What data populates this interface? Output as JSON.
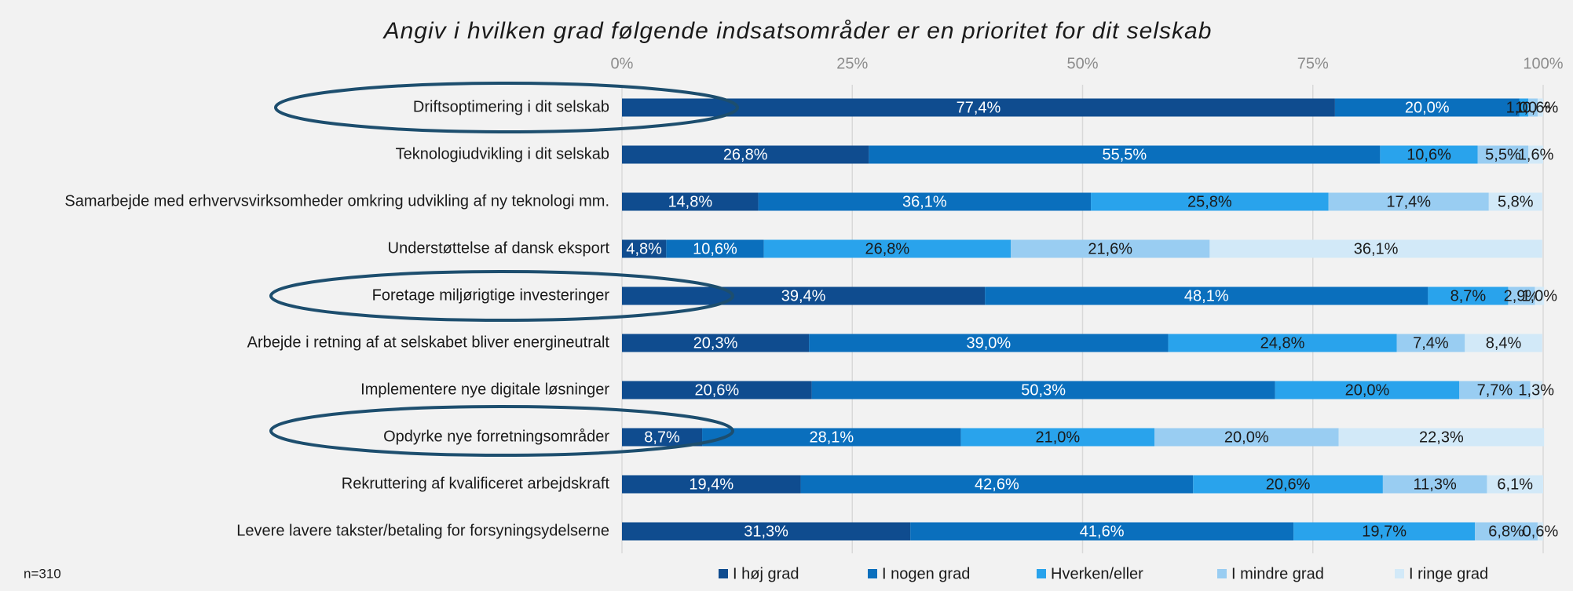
{
  "chart_data": {
    "type": "stacked_barh",
    "title": "Angiv i hvilken grad følgende indsatsområder er en prioritet for dit selskab",
    "annotation": "n=310",
    "categories": [
      "Driftsoptimering i dit selskab",
      "Teknologiudvikling i dit selskab",
      "Samarbejde med erhvervsvirksomheder omkring udvikling af ny teknologi mm.",
      "Understøttelse af dansk eksport",
      "Foretage miljørigtige investeringer",
      "Arbejde i retning af at selskabet bliver energineutralt",
      "Implementere nye digitale løsninger",
      "Opdyrke nye forretningsområder",
      "Rekruttering af kvalificeret arbejdskraft",
      "Levere lavere takster/betaling for forsyningsydelserne"
    ],
    "series": [
      {
        "name": "I høj grad",
        "color": "#0f4c8f",
        "label_color": "#ffffff",
        "values": [
          77.4,
          26.8,
          14.8,
          4.8,
          39.4,
          20.3,
          20.6,
          8.7,
          19.4,
          31.3
        ],
        "value_labels": [
          "77,4%",
          "26,8%",
          "14,8%",
          "4,8%",
          "39,4%",
          "20,3%",
          "20,6%",
          "8,7%",
          "19,4%",
          "31,3%"
        ]
      },
      {
        "name": "I nogen grad",
        "color": "#0a6fbd",
        "label_color": "#ffffff",
        "values": [
          20.0,
          55.5,
          36.1,
          10.6,
          48.1,
          39.0,
          50.3,
          28.1,
          42.6,
          41.6
        ],
        "value_labels": [
          "20,0%",
          "55,5%",
          "36,1%",
          "10,6%",
          "48,1%",
          "39,0%",
          "50,3%",
          "28,1%",
          "42,6%",
          "41,6%"
        ]
      },
      {
        "name": "Hverken/eller",
        "color": "#29a3ec",
        "label_color": "#1a1a1a",
        "values": [
          1.0,
          10.6,
          25.8,
          26.8,
          8.7,
          24.8,
          20.0,
          21.0,
          20.6,
          19.7
        ],
        "value_labels": [
          "1,0%",
          "10,6%",
          "25,8%",
          "26,8%",
          "8,7%",
          "24,8%",
          "20,0%",
          "21,0%",
          "20,6%",
          "19,7%"
        ]
      },
      {
        "name": "I mindre grad",
        "color": "#99cdf2",
        "label_color": "#1a1a1a",
        "values": [
          1.0,
          5.5,
          17.4,
          21.6,
          2.9,
          7.4,
          7.7,
          20.0,
          11.3,
          6.8
        ],
        "value_labels": [
          "1,0%",
          "5,5%",
          "17,4%",
          "21,6%",
          "2,9%",
          "7,4%",
          "7,7%",
          "20,0%",
          "11,3%",
          "6,8%"
        ]
      },
      {
        "name": "I ringe grad",
        "color": "#d2e9f8",
        "label_color": "#1a1a1a",
        "values": [
          0.6,
          1.6,
          5.8,
          36.1,
          1.0,
          8.4,
          1.3,
          22.3,
          6.1,
          0.6
        ],
        "value_labels": [
          "0,6%",
          "1,6%",
          "5,8%",
          "36,1%",
          "1,0%",
          "8,4%",
          "1,3%",
          "22,3%",
          "6,1%",
          "0,6%"
        ]
      }
    ],
    "xlim": [
      0,
      100
    ],
    "xticks": [
      {
        "value": 0,
        "label": "0%"
      },
      {
        "value": 25,
        "label": "25%"
      },
      {
        "value": 50,
        "label": "50%"
      },
      {
        "value": 75,
        "label": "75%"
      },
      {
        "value": 100,
        "label": "100%"
      }
    ],
    "grid": true,
    "legend": "bottom"
  }
}
